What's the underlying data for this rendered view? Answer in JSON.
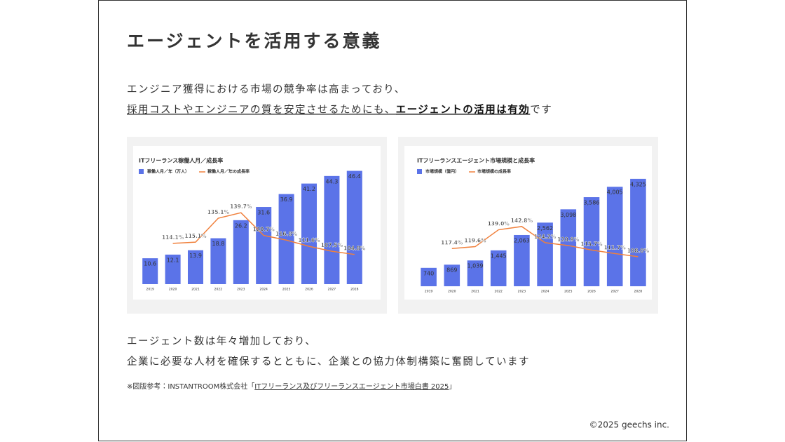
{
  "header": {
    "title": "エージェントを活用する意義"
  },
  "lead": {
    "line1": "エンジニア獲得における市場の競争率は高まっており、",
    "line2_start": "採用コストやエンジニアの質を安定させるためにも、",
    "line2_bold": "エージェントの活用は有効",
    "line2_end": "です"
  },
  "chart_data": [
    {
      "type": "bar",
      "title": "ITフリーランス稼働人月／成長率",
      "categories": [
        "2019",
        "2020",
        "2021",
        "2022",
        "2023",
        "2024",
        "2025",
        "2026",
        "2027",
        "2028"
      ],
      "series": [
        {
          "name": "稼働人月／年（万人）",
          "color": "#5b73e8",
          "values": [
            10.6,
            12.1,
            13.9,
            18.8,
            26.2,
            31.6,
            36.9,
            41.2,
            44.3,
            46.4
          ]
        },
        {
          "name": "稼働人月／年の成長率",
          "color": "#f0803c",
          "type": "line",
          "axis": "y2",
          "values": [
            null,
            114.1,
            115.1,
            135.1,
            139.7,
            120.7,
            116.8,
            111.6,
            107.5,
            104.8
          ],
          "value_labels": [
            null,
            "114.1%",
            "115.1%",
            "135.1%",
            "139.7%",
            "120.7%",
            "116.8%",
            "111.6%",
            "107.5%",
            "104.8%"
          ]
        }
      ],
      "ylim": [
        0,
        50
      ],
      "y2lim": [
        80,
        182
      ],
      "grid": false,
      "legend": "top-left"
    },
    {
      "type": "bar",
      "title": "ITフリーランスエージェント市場規模と成長率",
      "categories": [
        "2019",
        "2020",
        "2021",
        "2022",
        "2023",
        "2024",
        "2025",
        "2026",
        "2027",
        "2028"
      ],
      "series": [
        {
          "name": "市場規模（億円）",
          "color": "#5b73e8",
          "values": [
            740,
            869,
            1039,
            1445,
            2063,
            2562,
            3098,
            3586,
            4005,
            4325
          ],
          "value_labels": [
            "740",
            "869",
            "1,039",
            "1,445",
            "2,063",
            "2,562",
            "3,098",
            "3,586",
            "4,005",
            "4,325"
          ]
        },
        {
          "name": "市場規模の成長率",
          "color": "#f0803c",
          "type": "line",
          "axis": "y2",
          "values": [
            null,
            117.4,
            119.6,
            139.0,
            142.8,
            124.2,
            120.9,
            115.7,
            111.7,
            108.0
          ],
          "value_labels": [
            null,
            "117.4%",
            "119.6%",
            "139.0%",
            "142.8%",
            "124.2%",
            "120.9%",
            "115.7%",
            "111.7%",
            "108.0%"
          ]
        }
      ],
      "ylim": [
        0,
        5000
      ],
      "y2lim": [
        74,
        217
      ],
      "grid": false,
      "legend": "top-left"
    }
  ],
  "body": {
    "line1": "エージェント数は年々増加しており、",
    "line2": "企業に必要な人材を確保するとともに、企業との協力体制構築に奮闘しています"
  },
  "source": {
    "prefix": "※図版参考：INSTANTROOM株式会社「",
    "link": "ITフリーランス及びフリーランスエージェント市場白書 2025",
    "suffix": "」"
  },
  "footer": {
    "copyright": "©2025 geechs inc."
  }
}
